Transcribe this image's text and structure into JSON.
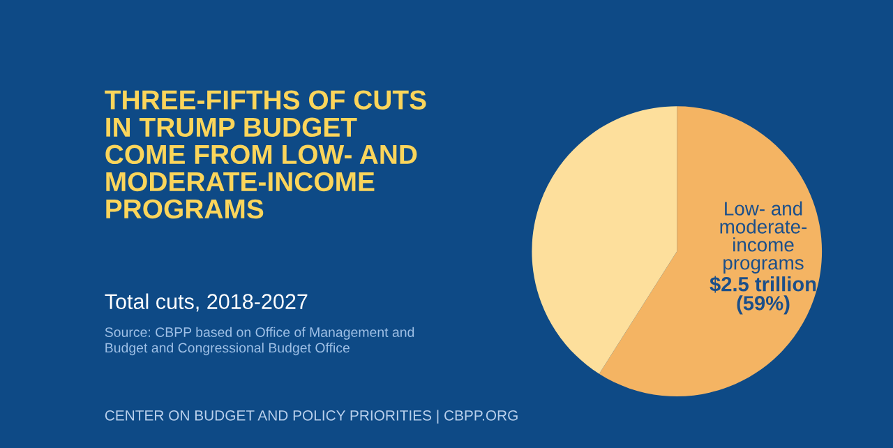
{
  "chart_data": {
    "type": "pie",
    "title": "THREE-FIFTHS OF CUTS\nIN TRUMP BUDGET\nCOME FROM LOW- AND\nMODERATE-INCOME\nPROGRAMS",
    "subtitle": "Total cuts, 2018-2027",
    "categories": [
      "Low- and\nmoderate-\nincome\nprograms",
      null
    ],
    "values": [
      59,
      41
    ],
    "colors": [
      "#f4b463",
      "#fddf9c"
    ],
    "value_labels": [
      "$2.5 trillion\n(59%)",
      null
    ],
    "annotations": [
      "Source: CBPP based on Office of Management and\nBudget and Congressional Budget Office",
      "CENTER ON BUDGET AND POLICY PRIORITIES | CBPP.ORG"
    ]
  }
}
